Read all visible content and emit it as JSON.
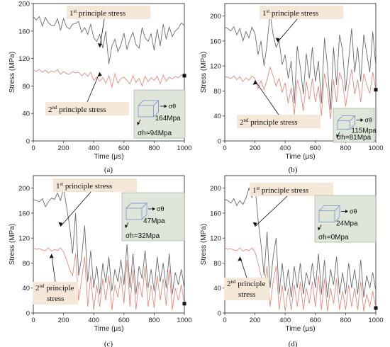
{
  "figure": {
    "panel_labels": [
      "(a)",
      "(b)",
      "(c)",
      "(d)"
    ]
  },
  "colors": {
    "first_series": "#6b6b6b",
    "second_series": "#e28a80",
    "label_bg": "#f5e7d8",
    "inset_bg": "#dfe6d9",
    "cube_edge": "#7a8fd0"
  },
  "chart_data": [
    {
      "type": "line",
      "panel": "(a)",
      "xlabel": "Time (μs)",
      "ylabel": "Stress (MPa)",
      "xlim": [
        0,
        1000
      ],
      "ylim": [
        0,
        200
      ],
      "xticks": [
        "0",
        "200",
        "400",
        "600",
        "800",
        "1000"
      ],
      "yticks": [
        "0",
        "40",
        "80",
        "120",
        "160",
        "200"
      ],
      "annotations": {
        "first": {
          "sup": "st",
          "base": "1",
          "rest": " principle stress"
        },
        "second": {
          "sup": "nd",
          "base": "2",
          "rest": " principle stress"
        }
      },
      "inset": {
        "sigma_theta": "σθ",
        "theta_value": "164Mpa",
        "sigma_h_label": "σh=94Mpa"
      },
      "series": [
        {
          "x": [
            0,
            20,
            40,
            60,
            80,
            100,
            120,
            140,
            160,
            180,
            200,
            220,
            240,
            260,
            280,
            300,
            320,
            340,
            360,
            380,
            400,
            420,
            440,
            460,
            480,
            500,
            520,
            540,
            560,
            580,
            600,
            620,
            640,
            660,
            680,
            700,
            720,
            740,
            760,
            780,
            800,
            820,
            840,
            860,
            880,
            900,
            920,
            940,
            960,
            980,
            1000
          ],
          "values": [
            181,
            176,
            181,
            167,
            180,
            172,
            168,
            168,
            178,
            161,
            178,
            166,
            163,
            170,
            171,
            174,
            158,
            165,
            155,
            170,
            150,
            145,
            155,
            135,
            160,
            112,
            138,
            148,
            130,
            140,
            157,
            133,
            148,
            158,
            140,
            135,
            165,
            150,
            145,
            156,
            132,
            163,
            138,
            170,
            148,
            166,
            152,
            160,
            164,
            172,
            168
          ]
        },
        {
          "x": [
            0,
            20,
            40,
            60,
            80,
            100,
            120,
            140,
            160,
            180,
            200,
            220,
            240,
            260,
            280,
            300,
            320,
            340,
            360,
            380,
            400,
            420,
            440,
            460,
            480,
            500,
            520,
            540,
            560,
            580,
            600,
            620,
            640,
            660,
            680,
            700,
            720,
            740,
            760,
            780,
            800,
            820,
            840,
            860,
            880,
            900,
            920,
            940,
            960,
            980,
            1000
          ],
          "values": [
            103,
            101,
            104,
            100,
            103,
            99,
            102,
            100,
            104,
            97,
            101,
            98,
            97,
            101,
            99,
            100,
            95,
            99,
            94,
            100,
            88,
            93,
            87,
            92,
            84,
            95,
            78,
            98,
            84,
            91,
            93,
            88,
            83,
            95,
            85,
            91,
            80,
            94,
            86,
            92,
            88,
            94,
            83,
            96,
            87,
            93,
            90,
            94,
            92,
            96,
            95
          ]
        }
      ]
    },
    {
      "type": "line",
      "panel": "(b)",
      "xlabel": "Time (μs)",
      "ylabel": "Stress (MPa)",
      "xlim": [
        0,
        1000
      ],
      "ylim": [
        0,
        220
      ],
      "xticks": [
        "0",
        "200",
        "400",
        "600",
        "800",
        "1000"
      ],
      "yticks": [
        "0",
        "40",
        "80",
        "120",
        "160",
        "200"
      ],
      "annotations": {
        "first": {
          "sup": "st",
          "base": "1",
          "rest": " principle stress"
        },
        "second": {
          "sup": "nd",
          "base": "2",
          "rest": " principle stress"
        }
      },
      "inset": {
        "sigma_theta": "σθ",
        "theta_value": "115Mpa",
        "sigma_h_label": "σh=81Mpa"
      },
      "series": [
        {
          "x": [
            0,
            20,
            40,
            60,
            80,
            100,
            120,
            140,
            160,
            180,
            200,
            220,
            240,
            260,
            280,
            300,
            320,
            340,
            360,
            380,
            400,
            420,
            440,
            460,
            480,
            500,
            520,
            540,
            560,
            580,
            600,
            620,
            640,
            660,
            680,
            700,
            720,
            740,
            760,
            780,
            800,
            820,
            840,
            860,
            880,
            900,
            920,
            940,
            960,
            980,
            1000
          ],
          "values": [
            182,
            180,
            176,
            183,
            170,
            180,
            160,
            175,
            165,
            182,
            172,
            138,
            160,
            120,
            155,
            205,
            170,
            150,
            160,
            122,
            138,
            100,
            128,
            60,
            152,
            118,
            75,
            140,
            100,
            150,
            95,
            128,
            60,
            165,
            120,
            50,
            150,
            90,
            170,
            145,
            80,
            130,
            180,
            110,
            150,
            95,
            170,
            140,
            110,
            175,
            120
          ]
        },
        {
          "x": [
            0,
            20,
            40,
            60,
            80,
            100,
            120,
            140,
            160,
            180,
            200,
            220,
            240,
            260,
            280,
            300,
            320,
            340,
            360,
            380,
            400,
            420,
            440,
            460,
            480,
            500,
            520,
            540,
            560,
            580,
            600,
            620,
            640,
            660,
            680,
            700,
            720,
            740,
            760,
            780,
            800,
            820,
            840,
            860,
            880,
            900,
            920,
            940,
            960,
            980,
            1000
          ],
          "values": [
            103,
            102,
            100,
            104,
            98,
            103,
            95,
            101,
            97,
            104,
            100,
            84,
            96,
            82,
            98,
            118,
            104,
            88,
            100,
            78,
            93,
            60,
            85,
            42,
            98,
            80,
            48,
            95,
            66,
            100,
            62,
            88,
            40,
            108,
            82,
            35,
            98,
            62,
            110,
            95,
            55,
            88,
            115,
            75,
            98,
            62,
            108,
            90,
            76,
            110,
            82
          ]
        }
      ]
    },
    {
      "type": "line",
      "panel": "(c)",
      "xlabel": "Time (μs)",
      "ylabel": "Stress (MPa)",
      "xlim": [
        0,
        1000
      ],
      "ylim": [
        0,
        220
      ],
      "xticks": [
        "0",
        "200",
        "400",
        "600",
        "800",
        "1000"
      ],
      "yticks": [
        "0",
        "40",
        "80",
        "120",
        "160",
        "200"
      ],
      "annotations": {
        "first": {
          "sup": "st",
          "base": "1",
          "rest": " principle stress"
        },
        "second_line1": {
          "sup": "nd",
          "base": "2",
          "rest": " principle"
        },
        "second_line2": "stress"
      },
      "inset": {
        "sigma_theta": "σθ",
        "theta_value": "47Mpa",
        "sigma_h_label": "σh=32Mpa"
      },
      "series": [
        {
          "x": [
            0,
            20,
            40,
            60,
            80,
            100,
            120,
            140,
            160,
            180,
            200,
            220,
            240,
            260,
            280,
            300,
            320,
            340,
            360,
            380,
            400,
            420,
            440,
            460,
            480,
            500,
            520,
            540,
            560,
            580,
            600,
            620,
            640,
            660,
            680,
            700,
            720,
            740,
            760,
            780,
            800,
            820,
            840,
            860,
            880,
            900,
            920,
            940,
            960,
            980,
            1000
          ],
          "values": [
            182,
            180,
            178,
            183,
            170,
            178,
            184,
            182,
            192,
            180,
            200,
            170,
            140,
            95,
            160,
            60,
            90,
            140,
            50,
            100,
            40,
            75,
            30,
            80,
            48,
            90,
            35,
            70,
            50,
            85,
            45,
            110,
            40,
            95,
            30,
            75,
            55,
            100,
            40,
            70,
            35,
            90,
            50,
            80,
            40,
            95,
            30,
            65,
            45,
            70,
            40
          ]
        },
        {
          "x": [
            0,
            20,
            40,
            60,
            80,
            100,
            120,
            140,
            160,
            180,
            200,
            220,
            240,
            260,
            280,
            300,
            320,
            340,
            360,
            380,
            400,
            420,
            440,
            460,
            480,
            500,
            520,
            540,
            560,
            580,
            600,
            620,
            640,
            660,
            680,
            700,
            720,
            740,
            760,
            780,
            800,
            820,
            840,
            860,
            880,
            900,
            920,
            940,
            960,
            980,
            1000
          ],
          "values": [
            104,
            102,
            103,
            101,
            100,
            104,
            99,
            102,
            100,
            104,
            98,
            85,
            70,
            60,
            95,
            20,
            55,
            90,
            10,
            60,
            5,
            45,
            10,
            55,
            20,
            60,
            5,
            45,
            25,
            60,
            15,
            85,
            10,
            70,
            5,
            50,
            25,
            75,
            10,
            45,
            8,
            60,
            20,
            55,
            12,
            70,
            5,
            40,
            20,
            45,
            15
          ]
        }
      ]
    },
    {
      "type": "line",
      "panel": "(d)",
      "xlabel": "Time (μs)",
      "ylabel": "Stress (MPa)",
      "xlim": [
        0,
        1000
      ],
      "ylim": [
        0,
        220
      ],
      "xticks": [
        "0",
        "200",
        "400",
        "600",
        "800",
        "1000"
      ],
      "yticks": [
        "0",
        "40",
        "80",
        "120",
        "160",
        "200"
      ],
      "annotations": {
        "first": {
          "sup": "st",
          "base": "1",
          "rest": " principle stress"
        },
        "second_line1": {
          "sup": "nd",
          "base": "2",
          "rest": " principle"
        },
        "second_line2": "stress"
      },
      "inset": {
        "sigma_theta": "σθ",
        "theta_value": "24Mpa",
        "sigma_h_label": "σh=0Mpa"
      },
      "series": [
        {
          "x": [
            0,
            20,
            40,
            60,
            80,
            100,
            120,
            140,
            160,
            180,
            200,
            220,
            240,
            260,
            280,
            300,
            320,
            340,
            360,
            380,
            400,
            420,
            440,
            460,
            480,
            500,
            520,
            540,
            560,
            580,
            600,
            620,
            640,
            660,
            680,
            700,
            720,
            740,
            760,
            780,
            800,
            820,
            840,
            860,
            880,
            900,
            920,
            940,
            960,
            980,
            1000
          ],
          "values": [
            182,
            180,
            176,
            183,
            172,
            180,
            174,
            184,
            200,
            185,
            205,
            150,
            110,
            60,
            130,
            40,
            90,
            120,
            30,
            80,
            35,
            70,
            25,
            75,
            40,
            80,
            30,
            65,
            45,
            80,
            40,
            95,
            30,
            85,
            25,
            70,
            45,
            90,
            30,
            65,
            30,
            80,
            40,
            70,
            30,
            85,
            25,
            60,
            40,
            65,
            35
          ]
        },
        {
          "x": [
            0,
            20,
            40,
            60,
            80,
            100,
            120,
            140,
            160,
            180,
            200,
            220,
            240,
            260,
            280,
            300,
            320,
            340,
            360,
            380,
            400,
            420,
            440,
            460,
            480,
            500,
            520,
            540,
            560,
            580,
            600,
            620,
            640,
            660,
            680,
            700,
            720,
            740,
            760,
            780,
            800,
            820,
            840,
            860,
            880,
            900,
            920,
            940,
            960,
            980,
            1000
          ],
          "values": [
            104,
            102,
            103,
            101,
            100,
            104,
            99,
            102,
            100,
            104,
            98,
            80,
            60,
            40,
            75,
            10,
            50,
            75,
            5,
            45,
            3,
            40,
            5,
            45,
            10,
            50,
            5,
            40,
            15,
            50,
            10,
            60,
            5,
            55,
            3,
            40,
            15,
            55,
            5,
            35,
            5,
            45,
            10,
            40,
            5,
            50,
            3,
            30,
            10,
            35,
            8
          ]
        }
      ]
    }
  ]
}
